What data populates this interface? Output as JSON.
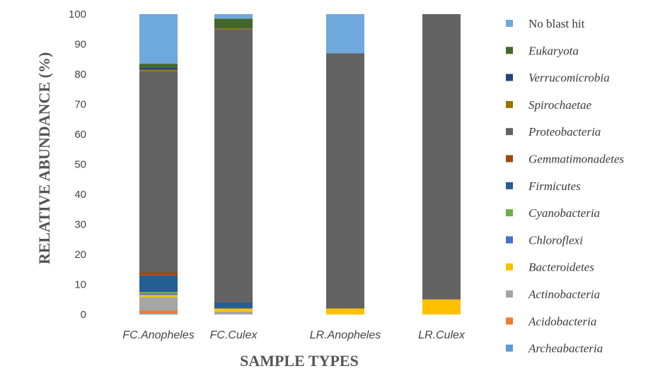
{
  "chart_data": {
    "type": "stacked-bar",
    "xlabel": "SAMPLE TYPES",
    "ylabel": "RELATIVE ABUNDANCE (%)",
    "ylim": [
      0,
      100
    ],
    "yticks": [
      "0",
      "10",
      "20",
      "30",
      "40",
      "50",
      "60",
      "70",
      "80",
      "90",
      "100"
    ],
    "grid": false,
    "legend_position": "right",
    "categories": [
      "FC.Anopheles",
      "FC.Culex",
      "LR.Anopheles",
      "LR.Culex"
    ],
    "series": [
      {
        "name": "Archeabacteria",
        "color": "#5b9bd5",
        "values": [
          0.3,
          0,
          0,
          0
        ]
      },
      {
        "name": "Acidobacteria",
        "color": "#ed7d31",
        "values": [
          1.0,
          0,
          0,
          0
        ]
      },
      {
        "name": "Actinobacteria",
        "color": "#a5a5a5",
        "values": [
          4.5,
          1.0,
          0,
          0
        ]
      },
      {
        "name": "Bacteroidetes",
        "color": "#ffc000",
        "values": [
          0.7,
          1.0,
          2.0,
          5.0
        ]
      },
      {
        "name": "Chloroflexi",
        "color": "#4472c4",
        "values": [
          0.5,
          0,
          0,
          0
        ]
      },
      {
        "name": "Cyanobacteria",
        "color": "#70ad47",
        "values": [
          0.5,
          0,
          0,
          0
        ]
      },
      {
        "name": "Firmicutes",
        "color": "#255e91",
        "values": [
          5.5,
          2.0,
          0,
          0
        ]
      },
      {
        "name": "Gemmatimonadetes",
        "color": "#9e480e",
        "values": [
          1.0,
          0,
          0,
          0
        ]
      },
      {
        "name": "Proteobacteria",
        "color": "#636363",
        "values": [
          67.0,
          91.0,
          85.0,
          95.0
        ]
      },
      {
        "name": "Spirochaetae",
        "color": "#997300",
        "values": [
          0.5,
          0.3,
          0,
          0
        ]
      },
      {
        "name": "Verrucomicrobia",
        "color": "#264478",
        "values": [
          0.8,
          0.2,
          0,
          0
        ]
      },
      {
        "name": "Eukaryota",
        "color": "#43682b",
        "values": [
          1.2,
          3.0,
          0,
          0
        ]
      },
      {
        "name": "No blast hit",
        "color": "#6fa8dc",
        "values": [
          16.5,
          1.5,
          13.0,
          0
        ]
      }
    ]
  }
}
